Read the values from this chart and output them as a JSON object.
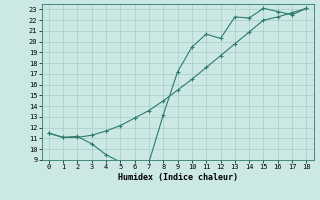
{
  "xlabel": "Humidex (Indice chaleur)",
  "line1_x": [
    0,
    1,
    2,
    3,
    4,
    5,
    6,
    7,
    8,
    9,
    10,
    11,
    12,
    13,
    14,
    15,
    16,
    17,
    18
  ],
  "line1_y": [
    11.5,
    11.1,
    11.2,
    10.5,
    9.5,
    8.8,
    8.7,
    8.8,
    13.2,
    17.2,
    19.5,
    20.7,
    20.3,
    22.3,
    22.2,
    23.1,
    22.8,
    22.5,
    23.1
  ],
  "line2_x": [
    0,
    1,
    2,
    3,
    4,
    5,
    6,
    7,
    8,
    9,
    10,
    11,
    12,
    13,
    14,
    15,
    16,
    17,
    18
  ],
  "line2_y": [
    11.5,
    11.1,
    11.1,
    11.3,
    11.7,
    12.2,
    12.9,
    13.6,
    14.5,
    15.5,
    16.5,
    17.6,
    18.7,
    19.8,
    20.9,
    22.0,
    22.3,
    22.7,
    23.1
  ],
  "line_color": "#2d7b6e",
  "bg_color": "#cce8e4",
  "grid_color": "#aaccc8",
  "ylim": [
    9,
    23.5
  ],
  "xlim": [
    -0.5,
    18.5
  ],
  "yticks": [
    9,
    10,
    11,
    12,
    13,
    14,
    15,
    16,
    17,
    18,
    19,
    20,
    21,
    22,
    23
  ],
  "xticks": [
    0,
    1,
    2,
    3,
    4,
    5,
    6,
    7,
    8,
    9,
    10,
    11,
    12,
    13,
    14,
    15,
    16,
    17,
    18
  ],
  "tick_fontsize": 5.0,
  "xlabel_fontsize": 6.0
}
